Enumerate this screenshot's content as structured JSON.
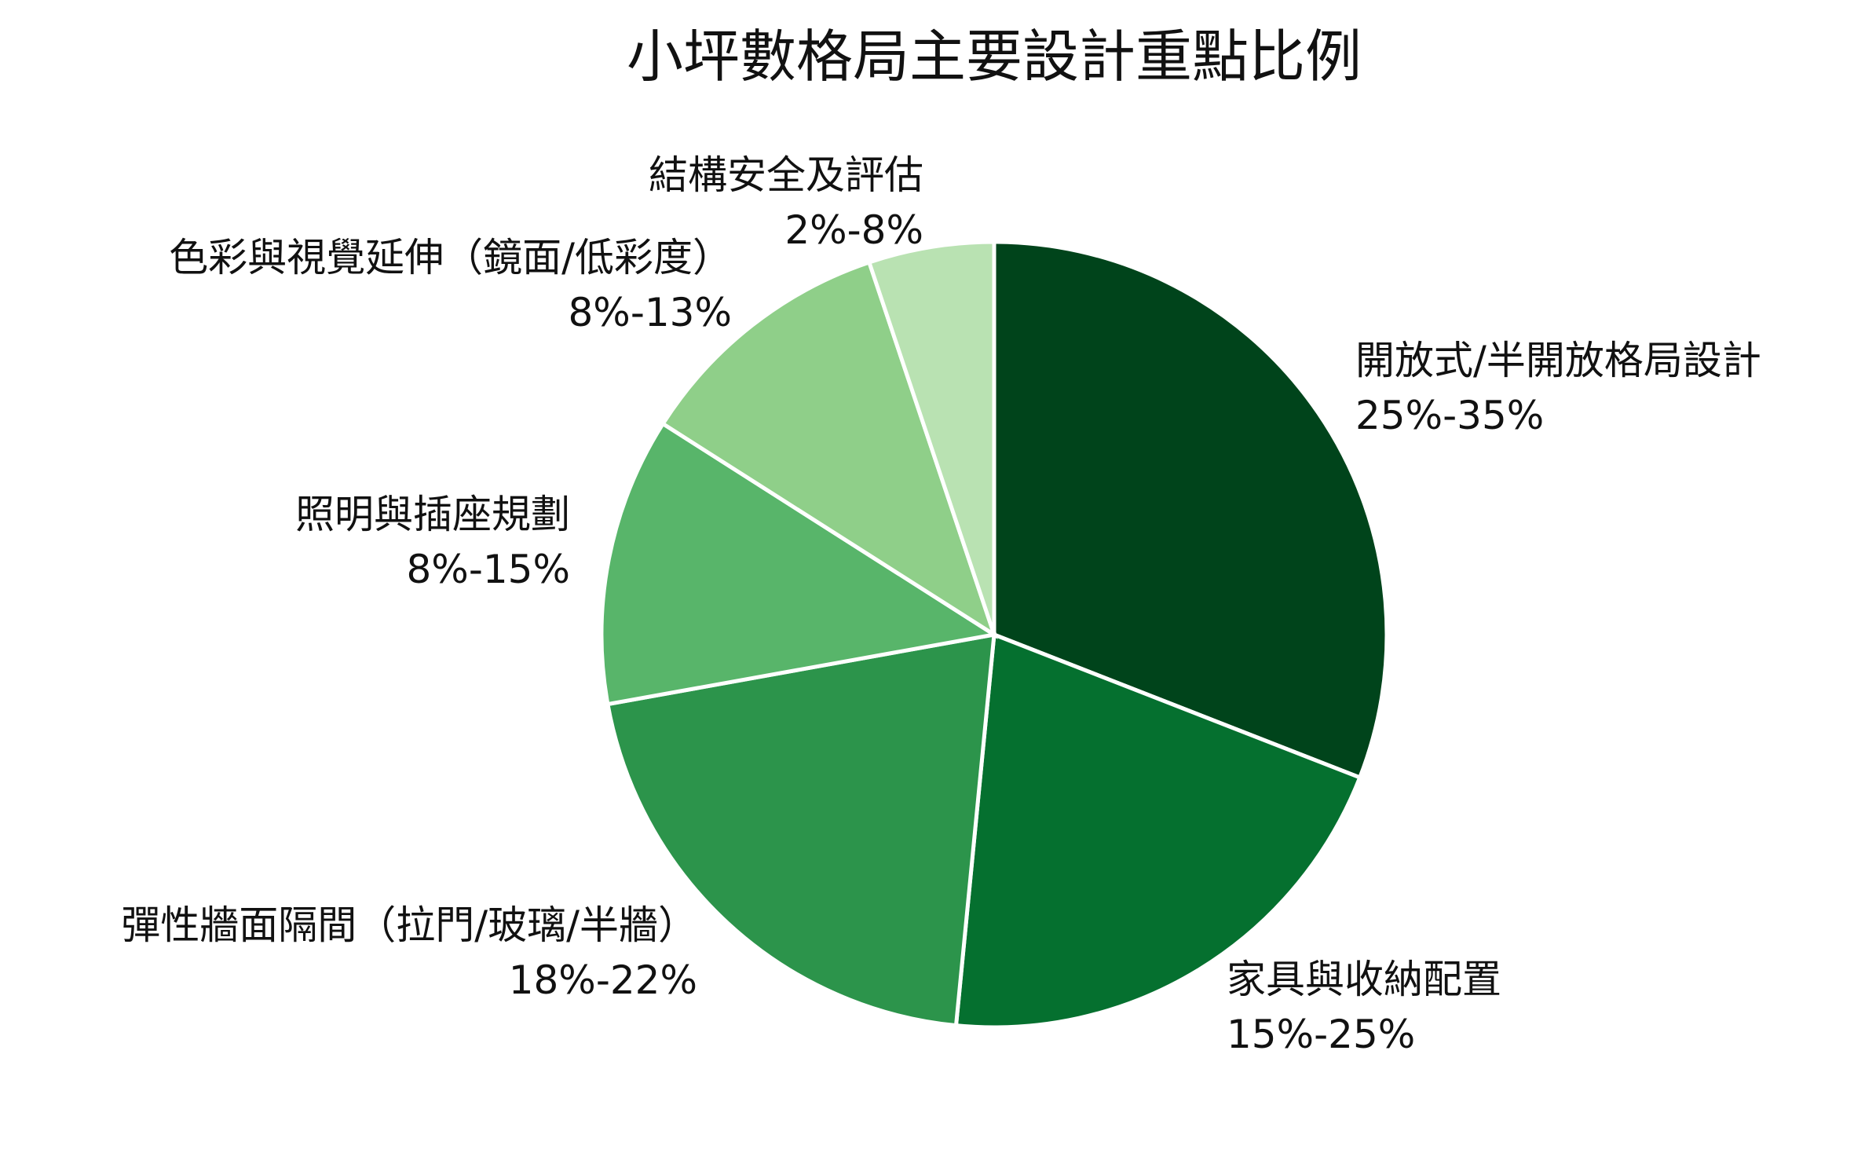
{
  "chart_data": {
    "type": "pie",
    "title": "小坪數格局主要設計重點比例",
    "slices": [
      {
        "label": "開放式/半開放格局設計",
        "range": "25%-35%",
        "value": 30,
        "color": "#00441b"
      },
      {
        "label": "家具與收納配置",
        "range": "15%-25%",
        "value": 20,
        "color": "#05702f"
      },
      {
        "label": "彈性牆面隔間（拉門/玻璃/半牆）",
        "range": "18%-22%",
        "value": 20,
        "color": "#2c944b"
      },
      {
        "label": "照明與插座規劃",
        "range": "8%-15%",
        "value": 11.5,
        "color": "#58b56a"
      },
      {
        "label": "色彩與視覺延伸（鏡面/低彩度）",
        "range": "8%-13%",
        "value": 10.5,
        "color": "#8fcf89"
      },
      {
        "label": "結構安全及評估",
        "range": "2%-8%",
        "value": 5,
        "color": "#b9e2b2"
      }
    ],
    "start_angle": "12 o'clock",
    "direction": "clockwise",
    "legend": "none"
  }
}
